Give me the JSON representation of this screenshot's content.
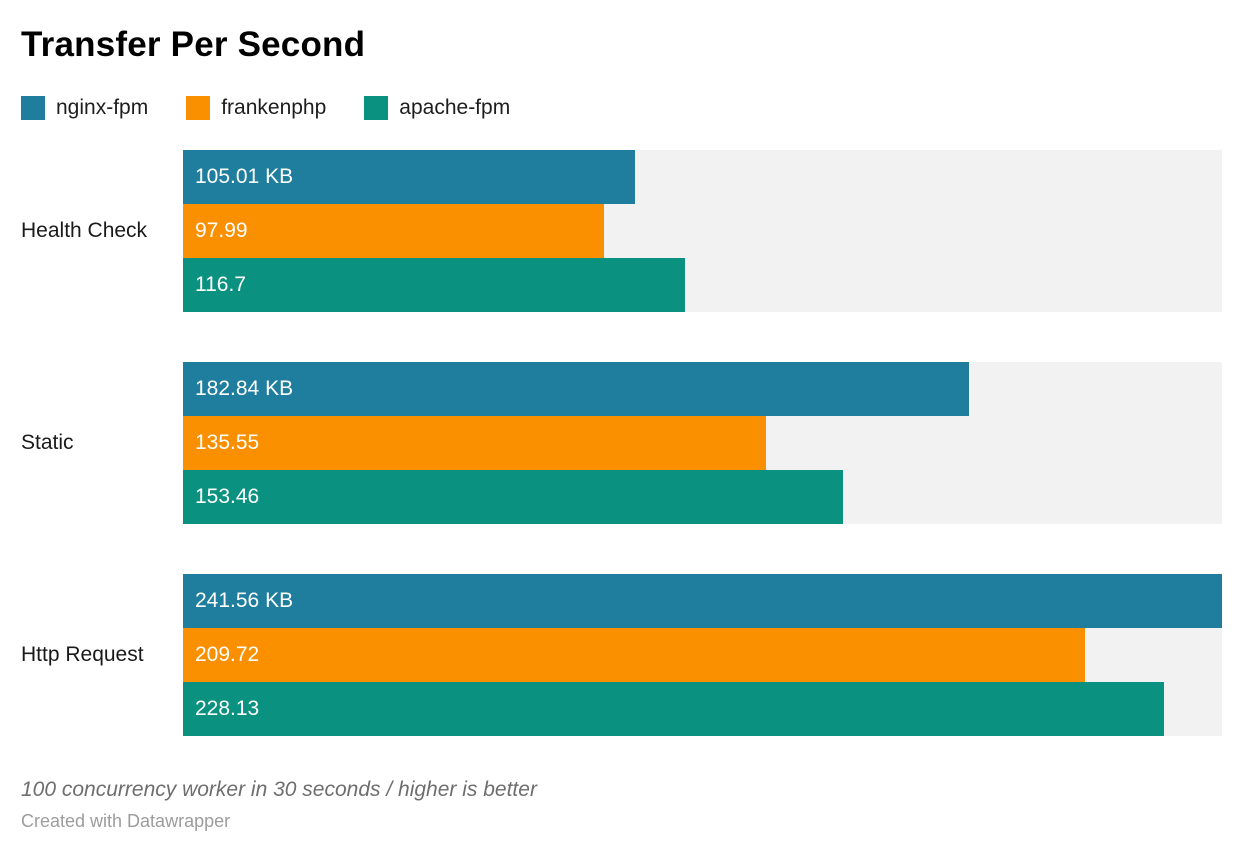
{
  "title": "Transfer Per Second",
  "legend": [
    {
      "label": "nginx-fpm",
      "color": "#1f7e9e"
    },
    {
      "label": "frankenphp",
      "color": "#fa8f00"
    },
    {
      "label": "apache-fpm",
      "color": "#0a9180"
    }
  ],
  "footnote": "100 concurrency worker in 30 seconds / higher is better",
  "attribution": "Created with Datawrapper",
  "colors": {
    "nginx_fpm": "#1f7e9e",
    "frankenphp": "#fa8f00",
    "apache_fpm": "#0a9180",
    "bar_track": "#f2f2f2",
    "value_label": "#ffffff",
    "title_text": "#000000",
    "category_text": "#1a1a1a",
    "footnote_text": "#6e6e6e",
    "attribution_text": "#9c9c9c"
  },
  "chart_data": {
    "type": "bar",
    "orientation": "horizontal",
    "title": "Transfer Per Second",
    "xlabel": "",
    "ylabel": "",
    "unit": "KB",
    "xlim": [
      0,
      241.56
    ],
    "grid": false,
    "legend_position": "top",
    "value_labels_inside": true,
    "track_color": "#f2f2f2",
    "categories": [
      "Health Check",
      "Static",
      "Http Request"
    ],
    "series": [
      {
        "name": "nginx-fpm",
        "color": "#1f7e9e",
        "values": [
          105.01,
          182.84,
          241.56
        ],
        "labels": [
          "105.01 KB",
          "182.84 KB",
          "241.56 KB"
        ]
      },
      {
        "name": "frankenphp",
        "color": "#fa8f00",
        "values": [
          97.99,
          135.55,
          209.72
        ],
        "labels": [
          "97.99",
          "135.55",
          "209.72"
        ]
      },
      {
        "name": "apache-fpm",
        "color": "#0a9180",
        "values": [
          116.7,
          153.46,
          228.13
        ],
        "labels": [
          "116.7",
          "153.46",
          "228.13"
        ]
      }
    ]
  }
}
